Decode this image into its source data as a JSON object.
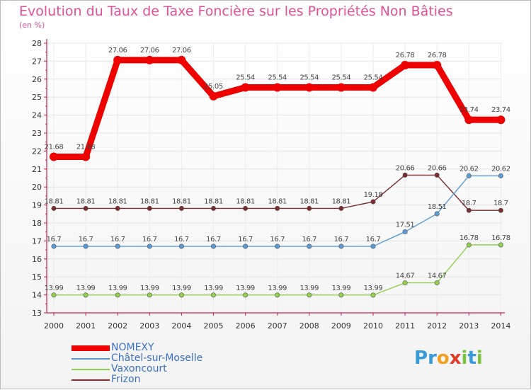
{
  "header": {
    "title": "Evolution du Taux de Taxe Foncière sur les Propriétés Non Bâties",
    "unit": "(en %)"
  },
  "logo": {
    "text": "Proxiti",
    "letters": [
      {
        "ch": "P",
        "color": "#3a9ad9"
      },
      {
        "ch": "r",
        "color": "#3a9ad9"
      },
      {
        "ch": "o",
        "color": "#f0a020"
      },
      {
        "ch": "x",
        "color": "#e03a2a"
      },
      {
        "ch": "i",
        "color": "#7cc242"
      },
      {
        "ch": "t",
        "color": "#3a9ad9"
      },
      {
        "ch": "i",
        "color": "#7cc242"
      }
    ]
  },
  "chart_data": {
    "type": "line",
    "title": "Evolution du Taux de Taxe Foncière sur les Propriétés Non Bâties",
    "ylabel": "(en %)",
    "xlabel": "",
    "ylim": [
      13,
      28
    ],
    "y_ticks": [
      13,
      14,
      15,
      16,
      17,
      18,
      19,
      20,
      21,
      22,
      23,
      24,
      25,
      26,
      27,
      28
    ],
    "grid": true,
    "legend_position": "bottom-left",
    "categories": [
      "2000",
      "2001",
      "2002",
      "2003",
      "2004",
      "2005",
      "2006",
      "2007",
      "2008",
      "2009",
      "2010",
      "2011",
      "2012",
      "2013",
      "2014"
    ],
    "series": [
      {
        "name": "NOMEXY",
        "color": "#ee0000",
        "values": [
          21.68,
          21.68,
          27.06,
          27.06,
          27.06,
          25.05,
          25.54,
          25.54,
          25.54,
          25.54,
          25.54,
          26.78,
          26.78,
          23.74,
          23.74
        ],
        "labels": [
          "21.68",
          "21.68",
          "27.06",
          "27.06",
          "27.06",
          "25.05",
          "25.54",
          "25.54",
          "25.54",
          "25.54",
          "25.54",
          "26.78",
          "26.78",
          "23.74",
          "23.74"
        ]
      },
      {
        "name": "Châtel-sur-Moselle",
        "color": "#5a9bd5",
        "values": [
          16.7,
          16.7,
          16.7,
          16.7,
          16.7,
          16.7,
          16.7,
          16.7,
          16.7,
          16.7,
          16.7,
          17.51,
          18.51,
          20.62,
          20.62
        ],
        "labels": [
          "16.7",
          "16.7",
          "16.7",
          "16.7",
          "16.7",
          "16.7",
          "16.7",
          "16.7",
          "16.7",
          "16.7",
          "16.7",
          "17.51",
          "18.51",
          "20.62",
          "20.62"
        ]
      },
      {
        "name": "Vaxoncourt",
        "color": "#92d050",
        "values": [
          13.99,
          13.99,
          13.99,
          13.99,
          13.99,
          13.99,
          13.99,
          13.99,
          13.99,
          13.99,
          13.99,
          14.67,
          14.67,
          16.78,
          16.78
        ],
        "labels": [
          "13.99",
          "13.99",
          "13.99",
          "13.99",
          "13.99",
          "13.99",
          "13.99",
          "13.99",
          "13.99",
          "13.99",
          "13.99",
          "14.67",
          "14.67",
          "16.78",
          "16.78"
        ]
      },
      {
        "name": "Frizon",
        "color": "#7b2c2c",
        "values": [
          18.81,
          18.81,
          18.81,
          18.81,
          18.81,
          18.81,
          18.81,
          18.81,
          18.81,
          18.81,
          19.18,
          20.66,
          20.66,
          18.7,
          18.7
        ],
        "labels": [
          "18.81",
          "18.81",
          "18.81",
          "18.81",
          "18.81",
          "18.81",
          "18.81",
          "18.81",
          "18.81",
          "18.81",
          "19.18",
          "20.66",
          "20.66",
          "18.7",
          "18.7"
        ]
      }
    ]
  }
}
